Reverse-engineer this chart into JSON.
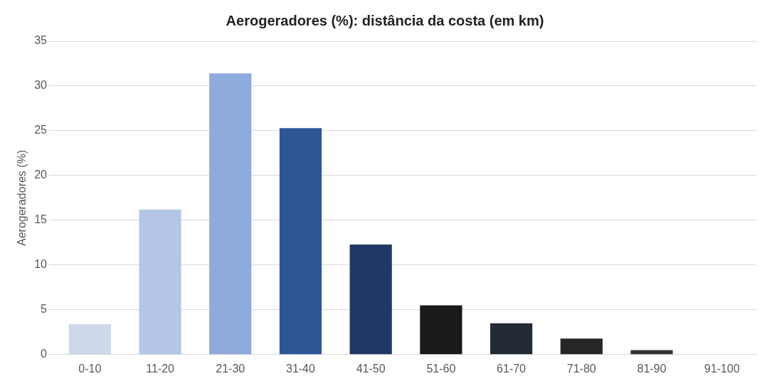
{
  "chart_data": {
    "type": "bar",
    "title": "Aerogeradores (%): distância da costa (em km)",
    "ylabel": "Aerogeradores (%)",
    "categories": [
      "0-10",
      "11-20",
      "21-30",
      "31-40",
      "41-50",
      "51-60",
      "61-70",
      "71-80",
      "81-90",
      "91-100"
    ],
    "values": [
      3.4,
      16.2,
      31.4,
      25.3,
      12.3,
      5.5,
      3.5,
      1.8,
      0.5,
      0
    ],
    "colors": [
      "#d0d9ec",
      "#b4c6e7",
      "#8faadc",
      "#2f5597",
      "#1f3864",
      "#1a1a1a",
      "#222a35",
      "#262626",
      "#333333",
      "#333333"
    ],
    "ylim": [
      0,
      35
    ],
    "yticks": [
      0,
      5,
      10,
      15,
      20,
      25,
      30,
      35
    ],
    "grid": "y",
    "legend": false
  }
}
